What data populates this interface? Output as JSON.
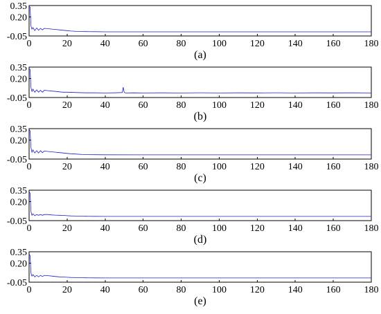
{
  "chart_data": [
    {
      "type": "line",
      "caption": "(a)",
      "xlim": [
        0,
        180
      ],
      "ylim": [
        -0.05,
        0.35
      ],
      "xticks": [
        "0",
        "20",
        "40",
        "60",
        "80",
        "100",
        "120",
        "140",
        "160",
        "180"
      ],
      "yticks": [
        "0.35",
        "0.20",
        "-0.05"
      ],
      "grid": false,
      "series": [
        {
          "color": "#1f1fc8",
          "x": [
            0,
            0.5,
            1,
            1.5,
            2,
            3,
            4,
            5,
            6,
            7,
            8,
            10,
            12,
            14,
            16,
            18,
            20,
            22,
            25,
            28,
            30,
            35,
            40,
            60,
            80,
            100,
            120,
            140,
            160,
            180
          ],
          "y": [
            0.34,
            0.33,
            0.08,
            0.04,
            0.06,
            0.02,
            0.055,
            0.025,
            0.05,
            0.03,
            0.05,
            0.045,
            0.04,
            0.035,
            0.03,
            0.025,
            0.02,
            0.015,
            0.01,
            0.008,
            0.007,
            0.006,
            0.005,
            0.005,
            0.005,
            0.005,
            0.005,
            0.005,
            0.005,
            0.005
          ]
        }
      ]
    },
    {
      "type": "line",
      "caption": "(b)",
      "xlim": [
        0,
        180
      ],
      "ylim": [
        -0.05,
        0.35
      ],
      "xticks": [
        "0",
        "20",
        "40",
        "60",
        "80",
        "100",
        "120",
        "140",
        "160",
        "180"
      ],
      "yticks": [
        "0.35",
        "0.20",
        "-0.05"
      ],
      "grid": false,
      "series": [
        {
          "color": "#1f1fc8",
          "x": [
            0,
            0.5,
            1,
            1.5,
            2,
            3,
            4,
            5,
            6,
            7,
            8,
            10,
            12,
            14,
            16,
            18,
            20,
            25,
            30,
            35,
            40,
            45,
            49,
            49.5,
            50,
            50.5,
            51,
            55,
            60,
            70,
            80,
            90,
            100,
            110,
            120,
            130,
            140,
            150,
            160,
            170,
            180
          ],
          "y": [
            0.33,
            0.32,
            0.08,
            0.03,
            0.06,
            0.02,
            0.05,
            0.02,
            0.045,
            0.02,
            0.045,
            0.04,
            0.035,
            0.03,
            0.025,
            0.02,
            0.02,
            0.015,
            0.012,
            0.012,
            0.01,
            0.012,
            0.015,
            0.085,
            0.02,
            0.012,
            0.01,
            0.012,
            0.01,
            0.012,
            0.01,
            0.013,
            0.01,
            0.012,
            0.011,
            0.013,
            0.01,
            0.012,
            0.011,
            0.012,
            0.01
          ]
        }
      ]
    },
    {
      "type": "line",
      "caption": "(c)",
      "xlim": [
        0,
        180
      ],
      "ylim": [
        -0.05,
        0.35
      ],
      "xticks": [
        "0",
        "20",
        "40",
        "60",
        "80",
        "100",
        "120",
        "140",
        "160",
        "180"
      ],
      "yticks": [
        "0.35",
        "0.20",
        "-0.05"
      ],
      "grid": false,
      "series": [
        {
          "color": "#1f1fc8",
          "x": [
            0,
            0.5,
            1,
            1.5,
            2,
            3,
            4,
            5,
            6,
            7,
            8,
            10,
            12,
            14,
            16,
            18,
            20,
            22,
            25,
            28,
            30,
            35,
            40,
            60,
            80,
            100,
            120,
            140,
            160,
            180
          ],
          "y": [
            0.34,
            0.32,
            0.1,
            0.04,
            0.07,
            0.03,
            0.06,
            0.03,
            0.06,
            0.035,
            0.055,
            0.05,
            0.045,
            0.04,
            0.035,
            0.03,
            0.025,
            0.02,
            0.015,
            0.01,
            0.008,
            0.007,
            0.006,
            0.005,
            0.005,
            0.005,
            0.005,
            0.005,
            0.005,
            0.005
          ]
        }
      ]
    },
    {
      "type": "line",
      "caption": "(d)",
      "xlim": [
        0,
        180
      ],
      "ylim": [
        -0.05,
        0.35
      ],
      "xticks": [
        "0",
        "20",
        "40",
        "60",
        "80",
        "100",
        "120",
        "140",
        "160",
        "180"
      ],
      "yticks": [
        "0.35",
        "0.20",
        "-0.05"
      ],
      "grid": false,
      "series": [
        {
          "color": "#1f1fc8",
          "x": [
            0,
            0.5,
            1,
            1.5,
            2,
            3,
            4,
            5,
            6,
            7,
            8,
            10,
            12,
            14,
            16,
            18,
            20,
            22,
            25,
            28,
            30,
            35,
            40,
            60,
            80,
            100,
            120,
            140,
            160,
            180
          ],
          "y": [
            0.33,
            0.31,
            0.07,
            0.02,
            0.04,
            0.015,
            0.03,
            0.02,
            0.03,
            0.02,
            0.03,
            0.03,
            0.025,
            0.022,
            0.02,
            0.018,
            0.015,
            0.012,
            0.01,
            0.008,
            0.007,
            0.006,
            0.005,
            0.005,
            0.005,
            0.005,
            0.005,
            0.005,
            0.005,
            0.005
          ]
        }
      ]
    },
    {
      "type": "line",
      "caption": "(e)",
      "xlim": [
        0,
        180
      ],
      "ylim": [
        -0.05,
        0.35
      ],
      "xticks": [
        "0",
        "20",
        "40",
        "60",
        "80",
        "100",
        "120",
        "140",
        "160",
        "180"
      ],
      "yticks": [
        "0.35",
        "0.20",
        "-0.05"
      ],
      "grid": false,
      "series": [
        {
          "color": "#1f1fc8",
          "x": [
            0,
            0.5,
            1,
            1.5,
            2,
            3,
            4,
            5,
            6,
            7,
            8,
            10,
            12,
            14,
            16,
            18,
            20,
            22,
            25,
            28,
            30,
            35,
            40,
            60,
            80,
            100,
            120,
            140,
            160,
            180
          ],
          "y": [
            0.32,
            0.3,
            0.07,
            0.03,
            0.05,
            0.02,
            0.04,
            0.02,
            0.04,
            0.025,
            0.04,
            0.035,
            0.03,
            0.025,
            0.02,
            0.018,
            0.015,
            0.012,
            0.01,
            0.008,
            0.007,
            0.006,
            0.005,
            0.005,
            0.005,
            0.005,
            0.005,
            0.005,
            0.005,
            0.005
          ]
        }
      ]
    }
  ]
}
